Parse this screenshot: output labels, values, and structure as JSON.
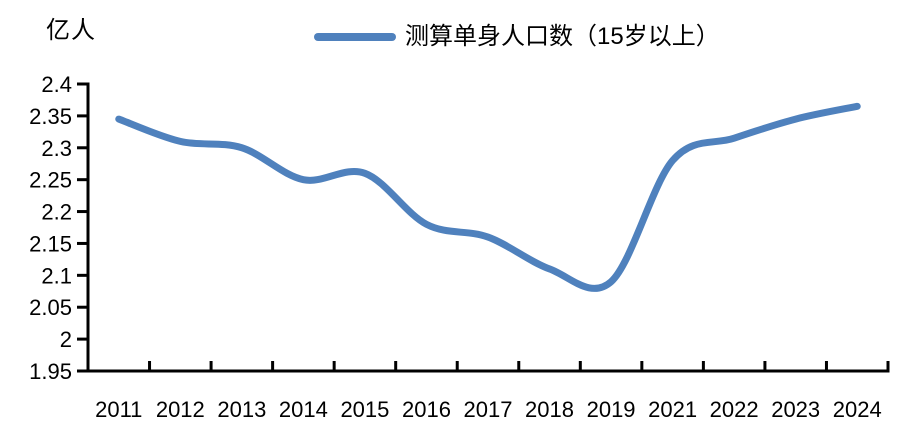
{
  "chart_data": {
    "type": "line",
    "smooth": true,
    "title": "",
    "ylabel": "亿人",
    "xlabel": "",
    "legend_position": "top",
    "grid": false,
    "axis_color": "#000000",
    "categories": [
      "2011",
      "2012",
      "2013",
      "2014",
      "2015",
      "2016",
      "2017",
      "2018",
      "2019",
      "2021",
      "2022",
      "2023",
      "2024"
    ],
    "series": [
      {
        "name": "测算单身人口数（15岁以上）",
        "color": "#4F81BD",
        "values": [
          2.345,
          2.31,
          2.3,
          2.25,
          2.26,
          2.18,
          2.16,
          2.11,
          2.09,
          2.28,
          2.315,
          2.345,
          2.365
        ]
      }
    ],
    "ylim": [
      1.95,
      2.4
    ],
    "ytick_labels": [
      "2.4",
      "2.35",
      "2.3",
      "2.25",
      "2.2",
      "2.15",
      "2.1",
      "2.05",
      "2",
      "1.95"
    ]
  }
}
